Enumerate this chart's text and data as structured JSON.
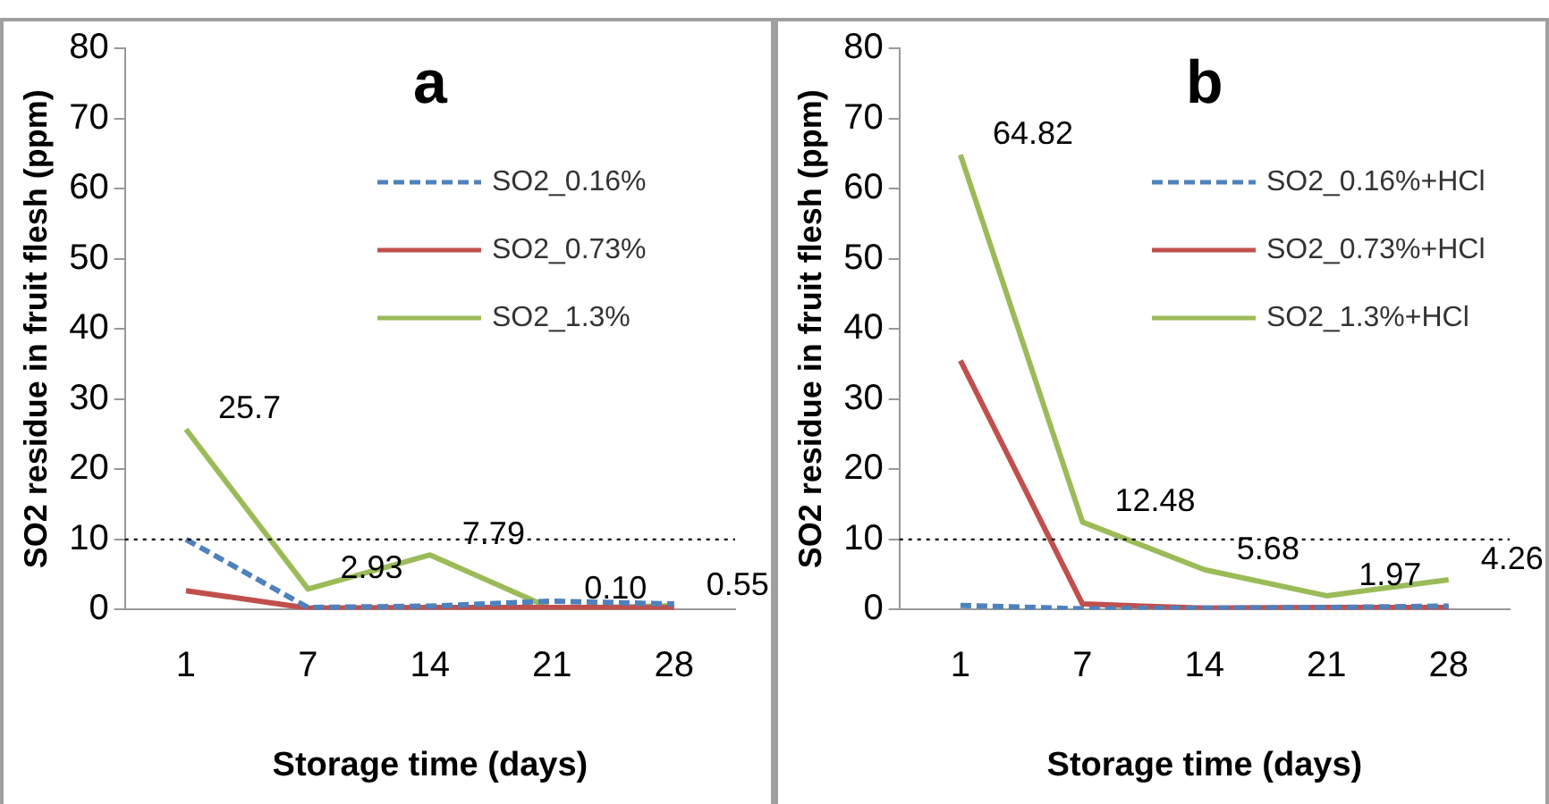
{
  "chart_data": [
    {
      "type": "line",
      "title": "a",
      "xlabel": "Storage time (days)",
      "ylabel": "SO2 residue in fruit flesh (ppm)",
      "categories": [
        "1",
        "7",
        "14",
        "21",
        "28"
      ],
      "series": [
        {
          "name": "SO2_0.16%",
          "color": "#4f81bd",
          "line_style": "dashed",
          "values": [
            10,
            0.3,
            0.5,
            1.2,
            0.8
          ]
        },
        {
          "name": "SO2_0.73%",
          "color": "#c0504d",
          "values": [
            2.7,
            0.2,
            0.3,
            0.3,
            0.3
          ]
        },
        {
          "name": "SO2_1.3%",
          "color": "#9bbb59",
          "values": [
            25.7,
            2.93,
            7.79,
            0.1,
            0.55
          ],
          "value_labels": [
            "25.7",
            "2.93",
            "7.79",
            "0.10",
            "0.55"
          ]
        }
      ],
      "ylim": [
        0,
        80
      ],
      "yticks": [
        0,
        10,
        20,
        30,
        40,
        50,
        60,
        70,
        80
      ],
      "grid": false,
      "legend": "top right",
      "marker": "none",
      "ref_lines": [
        {
          "axis": "y",
          "value": 10,
          "line_style": "dotted",
          "color": "#000000"
        }
      ]
    },
    {
      "type": "line",
      "title": "b",
      "xlabel": "Storage time (days)",
      "ylabel": "SO2 residue in fruit flesh (ppm)",
      "categories": [
        "1",
        "7",
        "14",
        "21",
        "28"
      ],
      "series": [
        {
          "name": "SO2_0.16%+HCl",
          "color": "#4f81bd",
          "line_style": "dashed",
          "values": [
            0.6,
            0.1,
            0.2,
            0.3,
            0.5
          ]
        },
        {
          "name": "SO2_0.73%+HCl",
          "color": "#c0504d",
          "values": [
            35.5,
            0.8,
            0.2,
            0.3,
            0.3
          ]
        },
        {
          "name": "SO2_1.3%+HCl",
          "color": "#9bbb59",
          "values": [
            64.82,
            12.48,
            5.68,
            1.97,
            4.26
          ],
          "value_labels": [
            "64.82",
            "12.48",
            "5.68",
            "1.97",
            "4.26"
          ]
        }
      ],
      "ylim": [
        0,
        80
      ],
      "yticks": [
        0,
        10,
        20,
        30,
        40,
        50,
        60,
        70,
        80
      ],
      "grid": false,
      "legend": "top right",
      "marker": "none",
      "ref_lines": [
        {
          "axis": "y",
          "value": 10,
          "line_style": "dotted",
          "color": "#000000"
        }
      ]
    }
  ]
}
